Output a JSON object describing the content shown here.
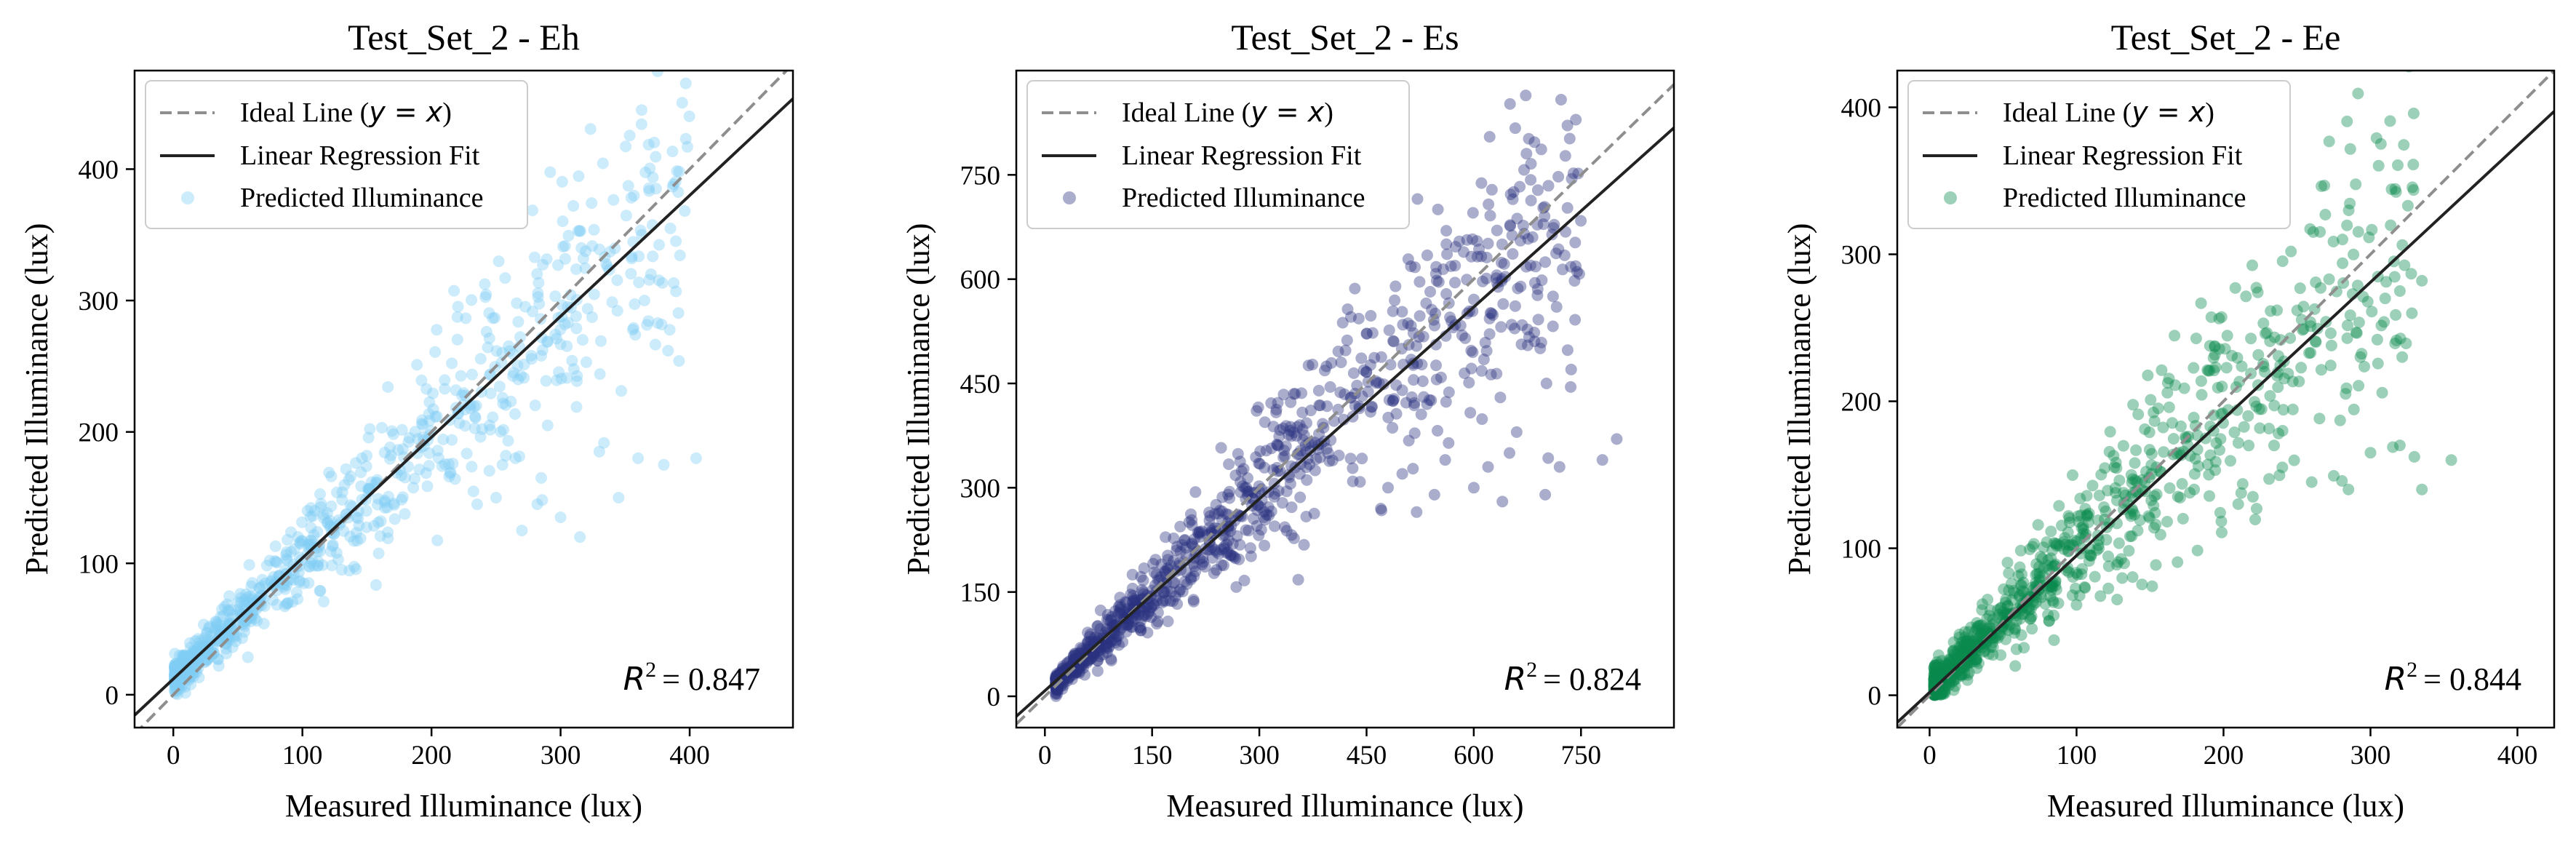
{
  "chart_data": [
    {
      "type": "scatter",
      "title": "Test_Set_2 - Eh",
      "xlabel": "Measured Illuminance (lux)",
      "ylabel": "Predicted Illuminance (lux)",
      "xlim": [
        -30,
        480
      ],
      "ylim": [
        -25,
        475
      ],
      "xticks": [
        0,
        100,
        200,
        300,
        400
      ],
      "yticks": [
        0,
        100,
        200,
        300,
        400
      ],
      "color": "#7fcdf5",
      "legend": {
        "position": "top-left",
        "ideal_prefix": "Ideal Line (",
        "ideal_math": "y = x",
        "ideal_suffix": ")",
        "regression_label": "Linear Regression Fit",
        "predicted_label": "Predicted Illuminance"
      },
      "ideal_line": {
        "slope": 1,
        "intercept": 0
      },
      "fit_line": {
        "slope": 0.92,
        "intercept": 12
      },
      "r2_label": "R",
      "r2_power": "2",
      "r2_value": "= 0.847",
      "scatter": {
        "n": 900,
        "seed": 11,
        "xmin": 1,
        "xmax": 400,
        "shape": 2.0,
        "trend_slope": 0.92,
        "trend_intercept": 12,
        "noise": 0.18,
        "outliers": [
          [
            265,
            180
          ],
          [
            270,
            125
          ],
          [
            285,
            165
          ],
          [
            300,
            135
          ],
          [
            315,
            120
          ],
          [
            330,
            185
          ],
          [
            345,
            150
          ],
          [
            360,
            180
          ],
          [
            380,
            175
          ],
          [
            405,
            180
          ],
          [
            250,
            150
          ],
          [
            255,
            175
          ],
          [
            282,
            145
          ],
          [
            245,
            205
          ],
          [
            290,
            205
          ],
          [
            365,
            300
          ],
          [
            370,
            320
          ]
        ]
      }
    },
    {
      "type": "scatter",
      "title": "Test_Set_2 - Es",
      "xlabel": "Measured Illuminance (lux)",
      "ylabel": "Predicted Illuminance (lux)",
      "xlim": [
        -40,
        880
      ],
      "ylim": [
        -45,
        900
      ],
      "xticks": [
        0,
        150,
        300,
        450,
        600,
        750
      ],
      "yticks": [
        0,
        150,
        300,
        450,
        600,
        750
      ],
      "color": "#2b317f",
      "legend": {
        "position": "top-left",
        "ideal_prefix": "Ideal Line (",
        "ideal_math": "y = x",
        "ideal_suffix": ")",
        "regression_label": "Linear Regression Fit",
        "predicted_label": "Predicted Illuminance"
      },
      "ideal_line": {
        "slope": 1,
        "intercept": 0
      },
      "fit_line": {
        "slope": 0.92,
        "intercept": 8
      },
      "r2_label": "R",
      "r2_power": "2",
      "r2_value": "= 0.824",
      "scatter": {
        "n": 1000,
        "seed": 23,
        "xmin": 15,
        "xmax": 750,
        "shape": 1.8,
        "trend_slope": 0.95,
        "trend_intercept": 5,
        "noise": 0.17,
        "outliers": [
          [
            470,
            270
          ],
          [
            480,
            300
          ],
          [
            500,
            320
          ],
          [
            520,
            265
          ],
          [
            600,
            300
          ],
          [
            620,
            330
          ],
          [
            640,
            280
          ],
          [
            650,
            350
          ],
          [
            660,
            380
          ],
          [
            700,
            290
          ],
          [
            720,
            330
          ],
          [
            780,
            340
          ],
          [
            800,
            370
          ],
          [
            560,
            340
          ],
          [
            545,
            290
          ]
        ]
      }
    },
    {
      "type": "scatter",
      "title": "Test_Set_2 - Ee",
      "xlabel": "Measured Illuminance (lux)",
      "ylabel": "Predicted Illuminance (lux)",
      "xlim": [
        -22,
        425
      ],
      "ylim": [
        -22,
        425
      ],
      "xticks": [
        0,
        100,
        200,
        300,
        400
      ],
      "yticks": [
        0,
        100,
        200,
        300,
        400
      ],
      "color": "#0a8a4e",
      "legend": {
        "position": "top-left",
        "ideal_prefix": "Ideal Line (",
        "ideal_math": "y = x",
        "ideal_suffix": ")",
        "regression_label": "Linear Regression Fit",
        "predicted_label": "Predicted Illuminance"
      },
      "ideal_line": {
        "slope": 1,
        "intercept": 0
      },
      "fit_line": {
        "slope": 0.93,
        "intercept": 2
      },
      "r2_label": "R",
      "r2_power": "2",
      "r2_value": "= 0.844",
      "scatter": {
        "n": 1000,
        "seed": 37,
        "xmin": 3,
        "xmax": 330,
        "shape": 2.4,
        "trend_slope": 0.97,
        "trend_intercept": 3,
        "noise": 0.2,
        "outliers": [
          [
            180,
            140
          ],
          [
            190,
            150
          ],
          [
            210,
            130
          ],
          [
            220,
            135
          ],
          [
            240,
            155
          ],
          [
            260,
            145
          ],
          [
            285,
            140
          ],
          [
            300,
            165
          ],
          [
            320,
            170
          ],
          [
            335,
            140
          ],
          [
            355,
            160
          ],
          [
            310,
            270
          ],
          [
            320,
            275
          ],
          [
            335,
            282
          ]
        ]
      }
    }
  ]
}
